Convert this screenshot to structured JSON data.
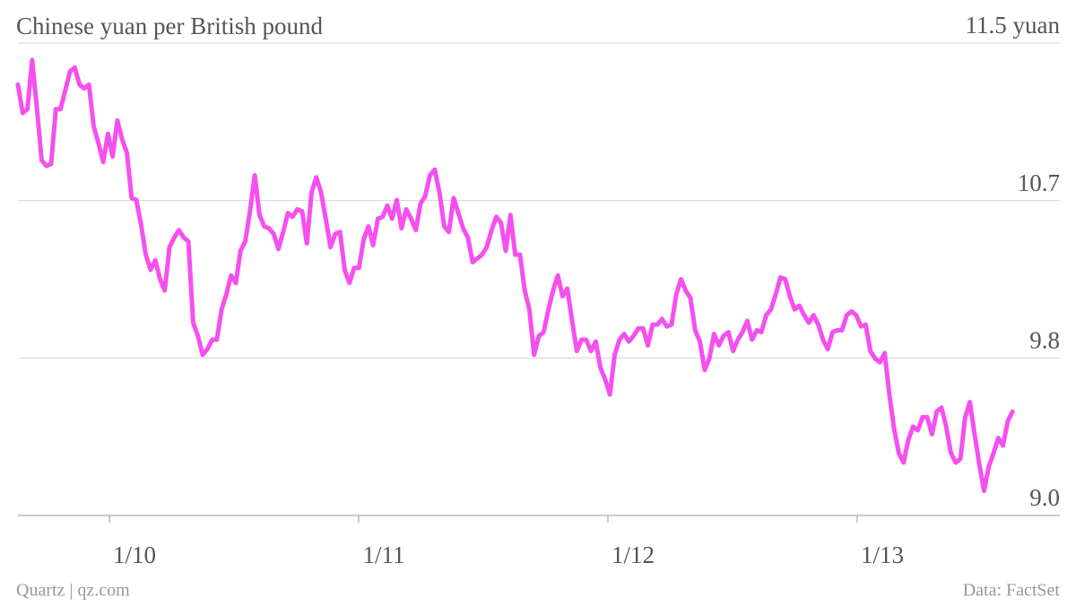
{
  "chart_data": {
    "type": "line",
    "title": "Chinese yuan per British pound",
    "source": "Data: FactSet",
    "credit": "Quartz | qz.com",
    "x": [
      2009.633,
      2009.652,
      2009.671,
      2009.69,
      2009.709,
      2009.728,
      2009.747,
      2009.766,
      2009.785,
      2009.804,
      2009.823,
      2009.842,
      2009.861,
      2009.88,
      2009.899,
      2009.918,
      2009.937,
      2009.956,
      2009.975,
      2009.994,
      2010.013,
      2010.032,
      2010.051,
      2010.07,
      2010.089,
      2010.108,
      2010.127,
      2010.146,
      2010.165,
      2010.184,
      2010.203,
      2010.222,
      2010.241,
      2010.26,
      2010.279,
      2010.298,
      2010.317,
      2010.336,
      2010.355,
      2010.374,
      2010.393,
      2010.412,
      2010.431,
      2010.45,
      2010.469,
      2010.488,
      2010.507,
      2010.526,
      2010.545,
      2010.564,
      2010.583,
      2010.602,
      2010.621,
      2010.64,
      2010.659,
      2010.678,
      2010.697,
      2010.716,
      2010.735,
      2010.754,
      2010.773,
      2010.792,
      2010.811,
      2010.83,
      2010.849,
      2010.868,
      2010.887,
      2010.906,
      2010.925,
      2010.944,
      2010.963,
      2010.982,
      2011.001,
      2011.02,
      2011.039,
      2011.058,
      2011.077,
      2011.096,
      2011.115,
      2011.134,
      2011.153,
      2011.172,
      2011.191,
      2011.21,
      2011.229,
      2011.248,
      2011.267,
      2011.286,
      2011.305,
      2011.324,
      2011.343,
      2011.362,
      2011.381,
      2011.4,
      2011.419,
      2011.438,
      2011.457,
      2011.476,
      2011.495,
      2011.514,
      2011.533,
      2011.552,
      2011.571,
      2011.59,
      2011.609,
      2011.628,
      2011.647,
      2011.666,
      2011.685,
      2011.704,
      2011.723,
      2011.742,
      2011.761,
      2011.78,
      2011.799,
      2011.818,
      2011.837,
      2011.856,
      2011.875,
      2011.894,
      2011.913,
      2011.932,
      2011.951,
      2011.97,
      2011.989,
      2012.008,
      2012.027,
      2012.046,
      2012.065,
      2012.084,
      2012.103,
      2012.122,
      2012.141,
      2012.16,
      2012.179,
      2012.198,
      2012.217,
      2012.236,
      2012.255,
      2012.274,
      2012.293,
      2012.312,
      2012.331,
      2012.35,
      2012.369,
      2012.388,
      2012.407,
      2012.426,
      2012.445,
      2012.464,
      2012.483,
      2012.502,
      2012.521,
      2012.54,
      2012.559,
      2012.578,
      2012.597,
      2012.616,
      2012.635,
      2012.654,
      2012.673,
      2012.692,
      2012.711,
      2012.73,
      2012.749,
      2012.768,
      2012.787,
      2012.806,
      2012.825,
      2012.844,
      2012.863,
      2012.882,
      2012.901,
      2012.92,
      2012.939,
      2012.958,
      2012.977,
      2012.996,
      2013.015,
      2013.034,
      2013.053,
      2013.072,
      2013.091,
      2013.11,
      2013.129,
      2013.148,
      2013.167,
      2013.186,
      2013.205,
      2013.224,
      2013.243,
      2013.262,
      2013.281,
      2013.3,
      2013.319,
      2013.338,
      2013.357,
      2013.376,
      2013.395,
      2013.414,
      2013.433,
      2013.452,
      2013.471,
      2013.49,
      2013.509,
      2013.528,
      2013.547,
      2013.566,
      2013.585,
      2013.604,
      2013.623
    ],
    "series": [
      {
        "name": "Chinese yuan per British pound",
        "color": "#f550ef",
        "values": [
          11.28,
          11.13,
          11.15,
          11.41,
          11.16,
          10.88,
          10.85,
          10.86,
          11.15,
          11.15,
          11.25,
          11.35,
          11.37,
          11.28,
          11.26,
          11.28,
          11.06,
          10.97,
          10.87,
          11.02,
          10.9,
          11.09,
          10.99,
          10.92,
          10.68,
          10.67,
          10.54,
          10.38,
          10.3,
          10.35,
          10.25,
          10.19,
          10.42,
          10.47,
          10.51,
          10.47,
          10.45,
          10.02,
          9.95,
          9.85,
          9.88,
          9.93,
          9.93,
          10.09,
          10.17,
          10.27,
          10.23,
          10.4,
          10.45,
          10.61,
          10.8,
          10.59,
          10.53,
          10.52,
          10.49,
          10.41,
          10.5,
          10.6,
          10.58,
          10.62,
          10.61,
          10.44,
          10.71,
          10.79,
          10.71,
          10.57,
          10.42,
          10.49,
          10.5,
          10.3,
          10.23,
          10.31,
          10.31,
          10.46,
          10.53,
          10.43,
          10.57,
          10.58,
          10.64,
          10.57,
          10.67,
          10.52,
          10.62,
          10.57,
          10.51,
          10.65,
          10.69,
          10.8,
          10.83,
          10.71,
          10.53,
          10.5,
          10.68,
          10.6,
          10.52,
          10.47,
          10.34,
          10.36,
          10.38,
          10.42,
          10.51,
          10.58,
          10.55,
          10.4,
          10.59,
          10.38,
          10.38,
          10.19,
          10.09,
          9.85,
          9.95,
          9.97,
          10.09,
          10.19,
          10.27,
          10.16,
          10.2,
          10.03,
          9.87,
          9.93,
          9.93,
          9.87,
          9.92,
          9.78,
          9.72,
          9.64,
          9.85,
          9.93,
          9.96,
          9.92,
          9.95,
          9.99,
          9.99,
          9.9,
          10.01,
          10.01,
          10.04,
          10.0,
          10.01,
          10.17,
          10.25,
          10.19,
          10.15,
          9.98,
          9.92,
          9.77,
          9.83,
          9.96,
          9.9,
          9.95,
          9.97,
          9.87,
          9.93,
          9.97,
          10.03,
          9.93,
          9.98,
          9.97,
          10.06,
          10.09,
          10.17,
          10.26,
          10.25,
          10.16,
          10.09,
          10.11,
          10.06,
          10.02,
          10.06,
          10.01,
          9.93,
          9.88,
          9.97,
          9.98,
          9.98,
          10.06,
          10.08,
          10.06,
          10.0,
          10.01,
          9.87,
          9.83,
          9.81,
          9.86,
          9.64,
          9.46,
          9.33,
          9.28,
          9.4,
          9.47,
          9.45,
          9.52,
          9.52,
          9.43,
          9.55,
          9.57,
          9.47,
          9.33,
          9.28,
          9.3,
          9.52,
          9.6,
          9.43,
          9.27,
          9.13,
          9.26,
          9.33,
          9.41,
          9.37,
          9.5,
          9.55
        ]
      }
    ],
    "xlim": [
      2009.633,
      2013.813
    ],
    "xticks": [
      {
        "value": 2010,
        "label": "1/10"
      },
      {
        "value": 2011,
        "label": "1/11"
      },
      {
        "value": 2012,
        "label": "1/12"
      },
      {
        "value": 2013,
        "label": "1/13"
      }
    ],
    "ylim": [
      9,
      11.5
    ],
    "yticks": [
      {
        "value": 9,
        "label": "9.0"
      },
      {
        "value": 9.8333,
        "label": "9.8"
      },
      {
        "value": 10.6667,
        "label": "10.7"
      },
      {
        "value": 11.5,
        "label": "11.5 yuan"
      }
    ],
    "grid": true
  }
}
